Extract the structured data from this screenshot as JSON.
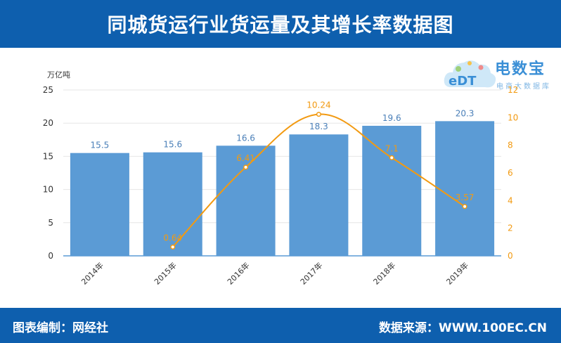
{
  "header": {
    "title": "同城货运行业货运量及其增长率数据图"
  },
  "footer": {
    "left": "图表编制：网经社",
    "right": "数据来源：WWW.100EC.CN"
  },
  "logo": {
    "brand": "电数宝",
    "sub": "电商大数据库",
    "mark": "eDT"
  },
  "colors": {
    "bar": "#5b9bd5",
    "line": "#f29a11",
    "header": "#0e5fae",
    "grid": "#e6e6e6",
    "axis": "#5b9bd5"
  },
  "chart_data": {
    "type": "bar",
    "title": "",
    "ylabel": "万亿吨",
    "categories": [
      "2014年",
      "2015年",
      "2016年",
      "2017年",
      "2018年",
      "2019年"
    ],
    "ylim": [
      0,
      25
    ],
    "y_ticks": [
      "0",
      "5",
      "10",
      "15",
      "20",
      "25"
    ],
    "y2lim": [
      0,
      12
    ],
    "y2_ticks": [
      "0",
      "2",
      "4",
      "6",
      "8",
      "10",
      "12"
    ],
    "series": [
      {
        "type": "bar",
        "axis": "left",
        "values": [
          15.5,
          15.6,
          16.6,
          18.3,
          19.6,
          20.3
        ],
        "labels": [
          "15.5",
          "15.6",
          "16.6",
          "18.3",
          "19.6",
          "20.3"
        ]
      },
      {
        "type": "line",
        "axis": "right",
        "values": [
          null,
          0.64,
          6.41,
          10.24,
          7.1,
          3.57
        ],
        "labels": [
          "",
          "0.64",
          "6.41",
          "10.24",
          "7.1",
          "3.57"
        ]
      }
    ],
    "legend": "none",
    "grid": true
  }
}
